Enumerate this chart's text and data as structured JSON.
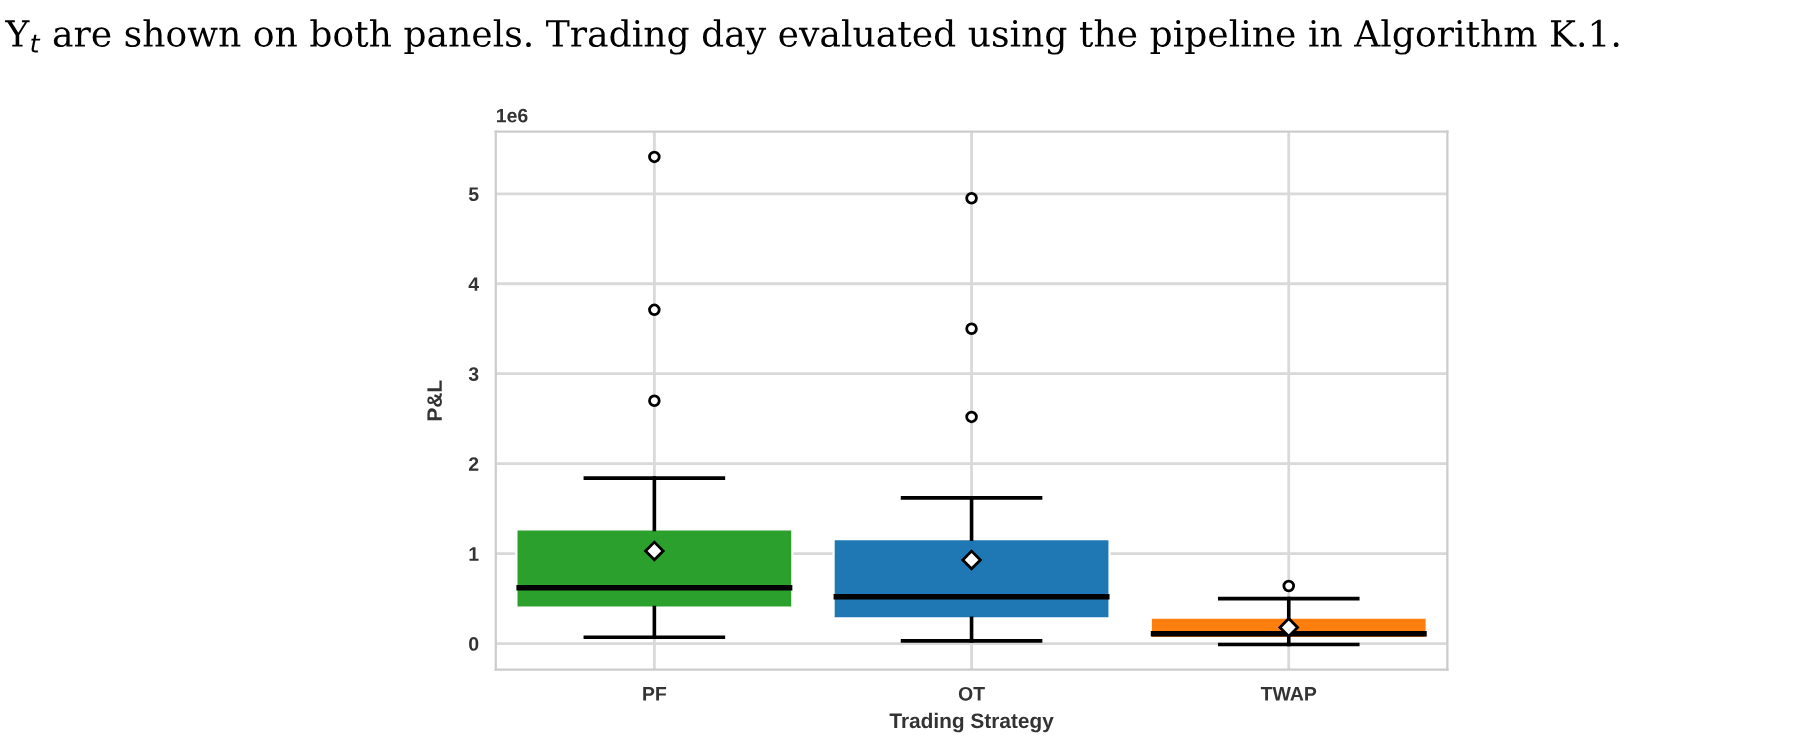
{
  "chart_data": {
    "type": "box",
    "xlabel": "Trading Strategy",
    "ylabel": "P&L",
    "annotations": [
      "Y$_{t}$ are shown on both panels. Trading day evaluated using the pipeline in Algorithm K.1.",
      "1e6"
    ],
    "categories": [
      "PF",
      "OT",
      "TWAP"
    ],
    "colors": [
      "#2ca02c",
      "#1f77b4",
      "#ff7f0e"
    ],
    "boxes": [
      {
        "low": 0.07,
        "q1": 0.4,
        "median": 0.62,
        "q3": 1.27,
        "high": 1.84,
        "mean": 1.03,
        "outliers": [
          2.7,
          3.71,
          5.41
        ]
      },
      {
        "low": 0.03,
        "q1": 0.28,
        "median": 0.52,
        "q3": 1.16,
        "high": 1.62,
        "mean": 0.93,
        "outliers": [
          2.52,
          3.5,
          4.95
        ]
      },
      {
        "low": -0.01,
        "q1": 0.06,
        "median": 0.11,
        "q3": 0.29,
        "high": 0.5,
        "mean": 0.18,
        "outliers": [
          0.64
        ]
      }
    ],
    "ylim": [
      -0.29,
      5.69
    ],
    "yticks": [
      0,
      1,
      2,
      3,
      4,
      5
    ],
    "grid": true,
    "legend": false
  }
}
